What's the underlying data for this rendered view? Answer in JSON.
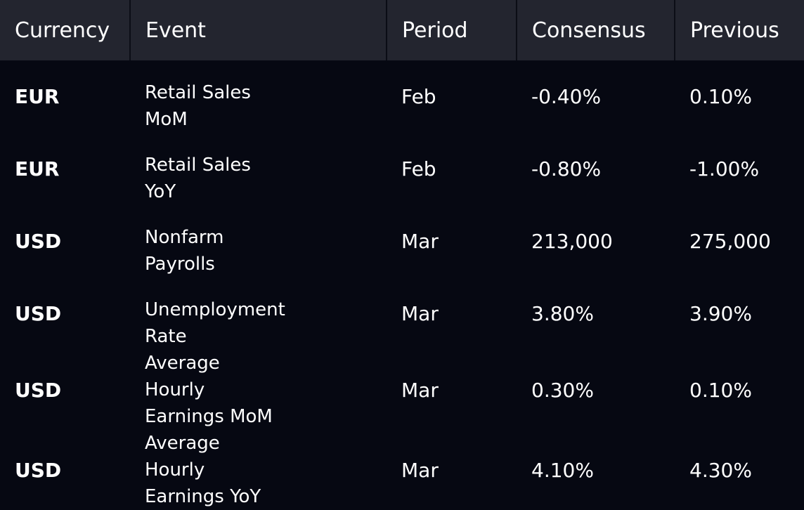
{
  "table": {
    "headers": {
      "currency": "Currency",
      "event": "Event",
      "period": "Period",
      "consensus": "Consensus",
      "previous": "Previous"
    },
    "rows": [
      {
        "currency": "EUR",
        "event": "Retail Sales MoM",
        "period": "Feb",
        "consensus": "-0.40%",
        "previous": "0.10%"
      },
      {
        "currency": "EUR",
        "event": "Retail Sales YoY",
        "period": "Feb",
        "consensus": "-0.80%",
        "previous": "-1.00%"
      },
      {
        "currency": "USD",
        "event": "Nonfarm Payrolls",
        "period": "Mar",
        "consensus": "213,000",
        "previous": "275,000"
      },
      {
        "currency": "USD",
        "event": "Unemployment Rate",
        "period": "Mar",
        "consensus": "3.80%",
        "previous": "3.90%"
      },
      {
        "currency": "USD",
        "event": "Average Hourly Earnings MoM",
        "period": "Mar",
        "consensus": "0.30%",
        "previous": "0.10%"
      },
      {
        "currency": "USD",
        "event": "Average Hourly Earnings YoY",
        "period": "Mar",
        "consensus": "4.10%",
        "previous": "4.30%"
      }
    ]
  },
  "colors": {
    "background": "#060812",
    "header_background": "#23252f",
    "text": "#ffffff"
  }
}
